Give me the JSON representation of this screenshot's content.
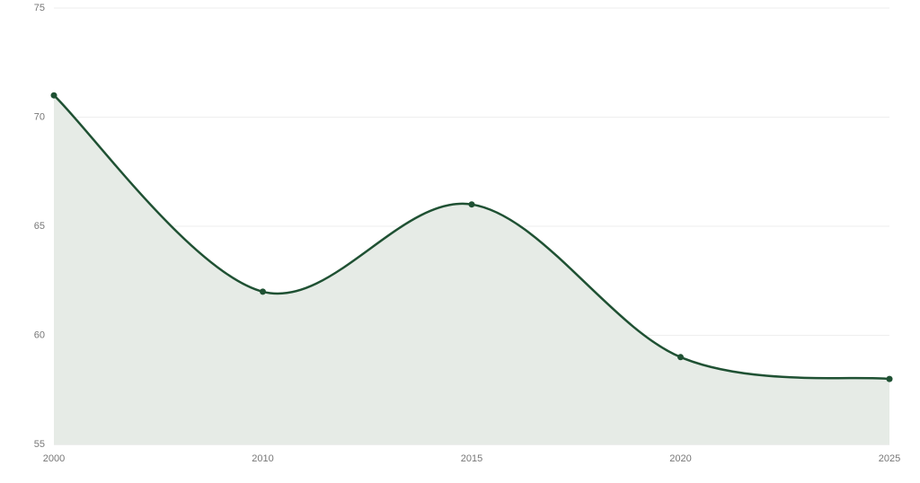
{
  "chart_data": {
    "type": "area",
    "categories": [
      "2000",
      "2010",
      "2015",
      "2020",
      "2025"
    ],
    "values": [
      71,
      62,
      66,
      59,
      58
    ],
    "color": "#1f5133",
    "fill": "#e6ebe6",
    "ylim": [
      55,
      75
    ],
    "yticks": [
      55,
      60,
      65,
      70,
      75
    ],
    "grid": true
  }
}
